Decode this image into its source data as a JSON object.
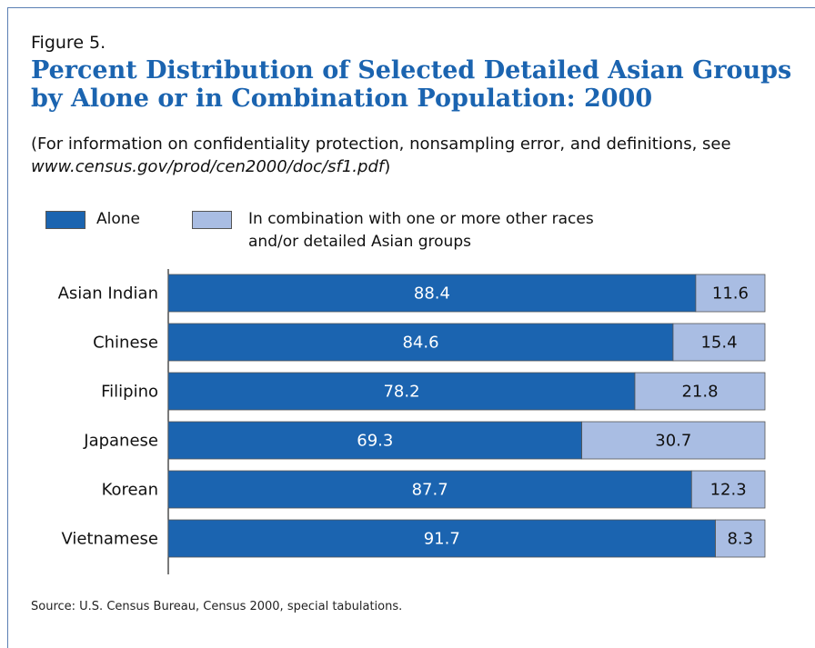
{
  "figure_label": "Figure 5.",
  "title_line1": "Percent Distribution of Selected Detailed Asian Groups",
  "title_line2": "by Alone or in Combination Population: 2000",
  "note_prefix": "(For information on confidentiality protection, nonsampling error, and definitions, see ",
  "note_url": "www.census.gov/prod/cen2000/doc/sf1.pdf",
  "note_suffix": ")",
  "legend": {
    "alone": "Alone",
    "combination": "In combination with one or more other races and/or detailed Asian groups"
  },
  "colors": {
    "alone": "#1b64b0",
    "combination": "#a9bde3",
    "title": "#1b64b0"
  },
  "source": "Source: U.S. Census Bureau, Census 2000, special tabulations.",
  "chart_data": {
    "type": "bar",
    "orientation": "horizontal",
    "stacked": true,
    "categories": [
      "Asian Indian",
      "Chinese",
      "Filipino",
      "Japanese",
      "Korean",
      "Vietnamese"
    ],
    "series": [
      {
        "name": "Alone",
        "values": [
          88.4,
          84.6,
          78.2,
          69.3,
          87.7,
          91.7
        ]
      },
      {
        "name": "In combination with one or more other races and/or detailed Asian groups",
        "values": [
          11.6,
          15.4,
          21.8,
          30.7,
          12.3,
          8.3
        ]
      }
    ],
    "xlim": [
      0,
      100
    ],
    "grid": false,
    "legend_position": "top-left"
  }
}
